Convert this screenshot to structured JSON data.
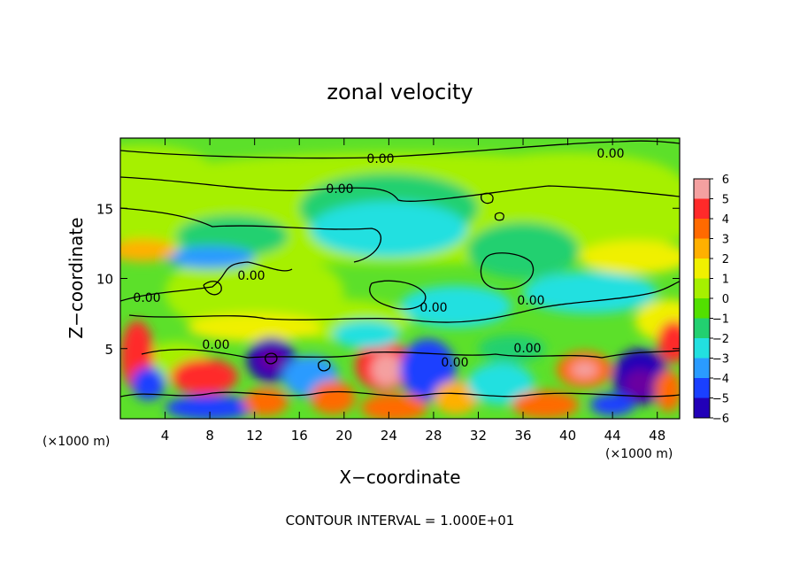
{
  "chart_data": {
    "type": "heatmap",
    "title": "zonal velocity",
    "xlabel": "X−coordinate",
    "ylabel": "Z−coordinate",
    "x_unit_left": "(×1000 m)",
    "x_unit_right": "(×1000 m)",
    "xlim": [
      0,
      50
    ],
    "ylim": [
      0,
      20
    ],
    "x_ticks": [
      4,
      8,
      12,
      16,
      20,
      24,
      28,
      32,
      36,
      40,
      44,
      48
    ],
    "y_ticks": [
      5,
      10,
      15
    ],
    "colorbar": {
      "levels": [
        6,
        5,
        4,
        3,
        2,
        1,
        0,
        -1,
        -2,
        -3,
        -4,
        -5,
        -6
      ],
      "labels": [
        "6",
        "5",
        "4",
        "3",
        "2",
        "1",
        "0",
        "−1",
        "−2",
        "−3",
        "−4",
        "−5",
        "−6"
      ],
      "colors": [
        "#f4a0a0",
        "#ff2a2a",
        "#ff6a00",
        "#ffb000",
        "#f0f000",
        "#a6f000",
        "#52e000",
        "#22d070",
        "#22e0e0",
        "#2a9bff",
        "#1a40ff",
        "#2200b8",
        "#6a00a0"
      ]
    },
    "contour_labels": [
      "0.00",
      "0.00",
      "0.00",
      "0.00",
      "0.00",
      "0.00",
      "0.00",
      "0.00",
      "0.00",
      "0.00"
    ],
    "footer": "CONTOUR INTERVAL = 1.000E+01"
  }
}
